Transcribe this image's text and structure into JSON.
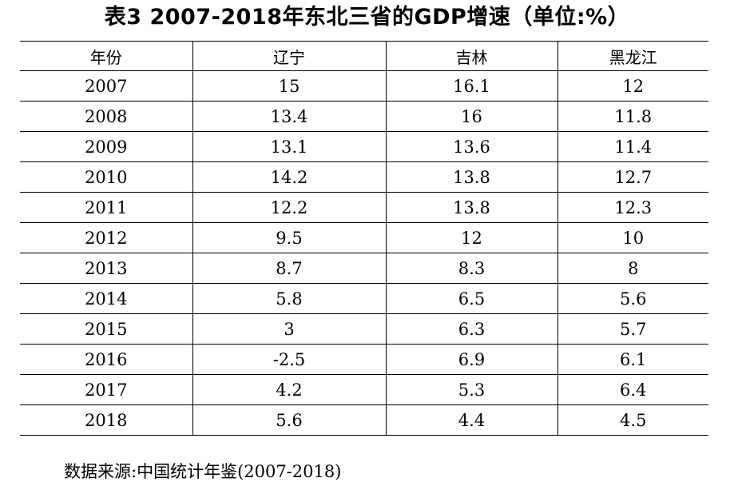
{
  "title": "表3 2007-2018年东北三省的GDP增速（单位:%）",
  "table": {
    "headers": [
      "年份",
      "辽宁",
      "吉林",
      "黑龙江"
    ],
    "rows": [
      [
        "2007",
        "15",
        "16.1",
        "12"
      ],
      [
        "2008",
        "13.4",
        "16",
        "11.8"
      ],
      [
        "2009",
        "13.1",
        "13.6",
        "11.4"
      ],
      [
        "2010",
        "14.2",
        "13.8",
        "12.7"
      ],
      [
        "2011",
        "12.2",
        "13.8",
        "12.3"
      ],
      [
        "2012",
        "9.5",
        "12",
        "10"
      ],
      [
        "2013",
        "8.7",
        "8.3",
        "8"
      ],
      [
        "2014",
        "5.8",
        "6.5",
        "5.6"
      ],
      [
        "2015",
        "3",
        "6.3",
        "5.7"
      ],
      [
        "2016",
        "-2.5",
        "6.9",
        "6.1"
      ],
      [
        "2017",
        "4.2",
        "5.3",
        "6.4"
      ],
      [
        "2018",
        "5.6",
        "4.4",
        "4.5"
      ]
    ]
  },
  "source": "数据来源:中国统计年鉴(2007-2018)"
}
